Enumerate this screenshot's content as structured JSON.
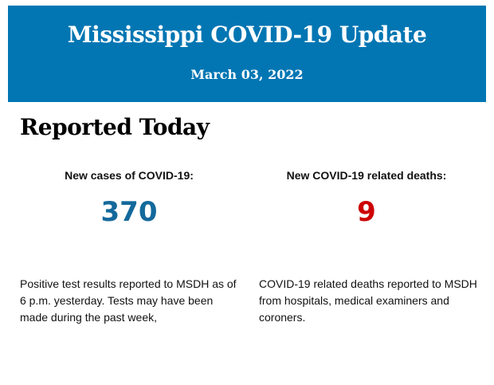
{
  "header": {
    "title": "Mississippi COVID-19 Update",
    "date": "March 03, 2022"
  },
  "section_title": "Reported Today",
  "cases": {
    "label": "New cases of COVID-19:",
    "value": "370",
    "color": "#13699b",
    "description": "Positive test results reported to MSDH as of 6 p.m. yesterday. Tests may have been made during the past week,"
  },
  "deaths": {
    "label": "New COVID-19 related deaths:",
    "value": "9",
    "color": "#cc0000",
    "description": "COVID-19 related deaths reported to MSDH from hospitals, medical examiners and coroners."
  }
}
